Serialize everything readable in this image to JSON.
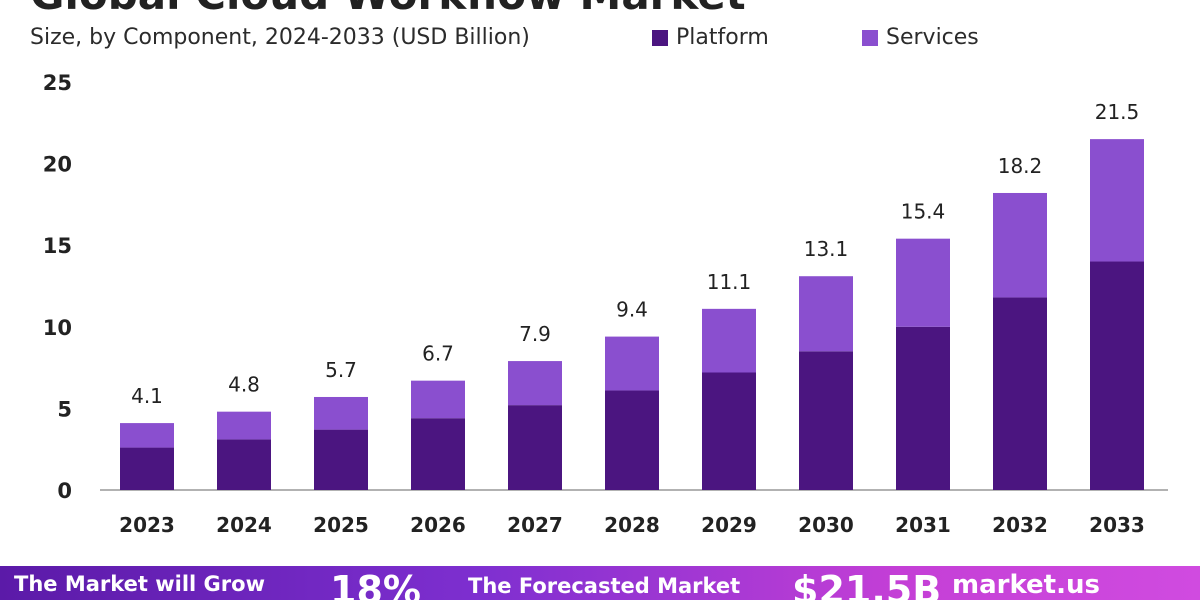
{
  "header": {
    "title": "Global Cloud Workflow Market",
    "subtitle": "Size, by Component, 2024-2033 (USD Billion)"
  },
  "colors": {
    "platform": "#4b1580",
    "services": "#8a4fcf",
    "axis": "#999999",
    "accent": "#7e2fd0"
  },
  "chart_data": {
    "type": "bar",
    "stacked": true,
    "title": "Global Cloud Workflow Market",
    "subtitle": "Size, by Component, 2024-2033 (USD Billion)",
    "categories": [
      "2023",
      "2024",
      "2025",
      "2026",
      "2027",
      "2028",
      "2029",
      "2030",
      "2031",
      "2032",
      "2033"
    ],
    "series": [
      {
        "name": "Platform",
        "values": [
          2.6,
          3.1,
          3.7,
          4.4,
          5.2,
          6.1,
          7.2,
          8.5,
          10.0,
          11.8,
          14.0
        ]
      },
      {
        "name": "Services",
        "values": [
          1.5,
          1.7,
          2.0,
          2.3,
          2.7,
          3.3,
          3.9,
          4.6,
          5.4,
          6.4,
          7.5
        ]
      }
    ],
    "totals": [
      "4.1",
      "4.8",
      "5.7",
      "6.7",
      "7.9",
      "9.4",
      "11.1",
      "13.1",
      "15.4",
      "18.2",
      "21.5"
    ],
    "y_ticks": [
      "0",
      "5",
      "10",
      "15",
      "20",
      "25"
    ],
    "ylim": [
      0,
      25
    ],
    "legend": "top-right",
    "grid": false
  },
  "footer": {
    "grow_text": "The Market will Grow",
    "cagr": "18%",
    "forecast_text": "The Forecasted Market",
    "forecast_value": "$21.5B",
    "brand": "market.us"
  }
}
